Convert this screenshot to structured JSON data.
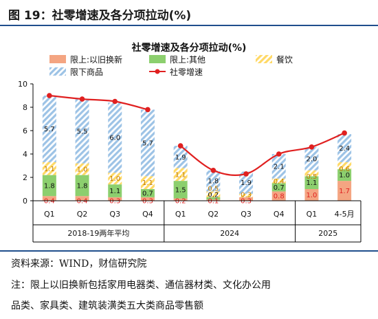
{
  "figure": {
    "title": "图 19：社零增速及各分项拉动(%)",
    "source": "资料来源：WIND，财信研究院",
    "note_line1": "注：限上以旧换新包括家用电器类、通信器材类、文化办公用",
    "note_line2": "品类、家具类、建筑装潢类五大类商品零售额"
  },
  "chart_data": {
    "type": "bar",
    "stacked": true,
    "title": "社零增速及各分项拉动(%)",
    "categories": [
      "Q1",
      "Q2",
      "Q3",
      "Q4",
      "Q1",
      "Q2",
      "Q3",
      "Q4",
      "Q1",
      "4-5月"
    ],
    "groups": [
      {
        "label": "2018-19两年平均",
        "categories": [
          "Q1",
          "Q2",
          "Q3",
          "Q4"
        ]
      },
      {
        "label": "2024",
        "categories": [
          "Q1",
          "Q2",
          "Q3",
          "Q4"
        ]
      },
      {
        "label": "2025",
        "categories": [
          "Q1",
          "4-5月"
        ]
      }
    ],
    "ylim": [
      0,
      10
    ],
    "yticks": [
      0,
      2,
      4,
      6,
      8,
      10
    ],
    "series": [
      {
        "name": "限上:以旧换新",
        "color": "#f4a582",
        "values": [
          0.4,
          0.4,
          0.3,
          0.3,
          0.2,
          0.1,
          0.3,
          0.8,
          1.0,
          1.7
        ]
      },
      {
        "name": "限上:其他",
        "color": "#8ccf6e",
        "values": [
          1.8,
          1.8,
          1.1,
          0.7,
          1.5,
          0.2,
          0.0,
          0.7,
          1.1,
          1.0
        ]
      },
      {
        "name": "餐饮",
        "color": "#ffd966",
        "values": [
          1.1,
          1.0,
          1.0,
          1.1,
          1.1,
          0.5,
          0.3,
          0.4,
          0.5,
          0.6
        ]
      },
      {
        "name": "限下商品",
        "color": "#9dc3e6",
        "values": [
          5.7,
          5.5,
          6.0,
          5.7,
          1.9,
          1.8,
          1.9,
          2.1,
          2.0,
          2.4
        ]
      },
      {
        "name": "社零增速",
        "type": "line",
        "color": "#e02020",
        "values": [
          9.0,
          8.7,
          8.5,
          7.8,
          4.7,
          2.6,
          2.3,
          4.0,
          4.6,
          5.8
        ]
      }
    ],
    "value_labels": {
      "限上:以旧换新": [
        "0.4",
        "0.4",
        "0.3",
        "0.3",
        "0.2",
        "0.1",
        "0.3",
        "0.8",
        "1.0",
        "1.7"
      ],
      "限上:其他": [
        "1.8",
        "1.8",
        "1.1",
        "0.7",
        "1.5",
        "0.2",
        "",
        "0.7",
        "1.1",
        "1.0"
      ],
      "餐饮": [
        "1.1",
        "1.0",
        "1.0",
        "1.1",
        "1.1",
        "0.5",
        "0.3",
        "0.4",
        "0.5",
        "0.6"
      ],
      "限下商品": [
        "5.7",
        "5.5",
        "6.0",
        "5.7",
        "1.9",
        "1.8",
        "1.9",
        "2.1",
        "2.0",
        "2.4"
      ]
    },
    "legend_placement": "top",
    "grid": false
  }
}
